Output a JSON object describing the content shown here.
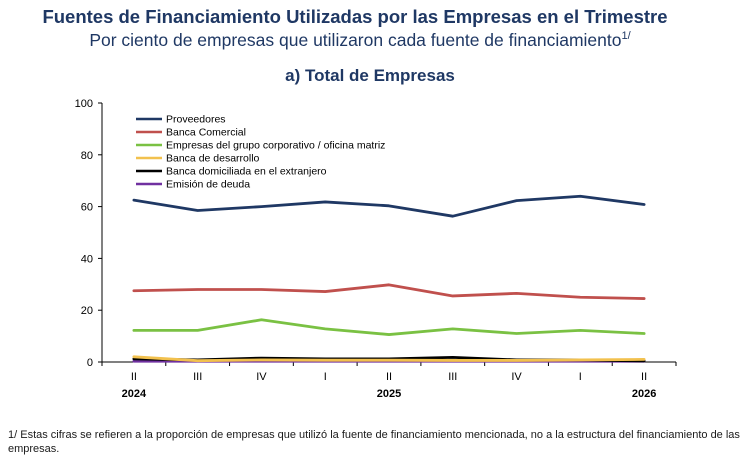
{
  "header": {
    "title": "Fuentes de Financiamiento Utilizadas por las Empresas en el Trimestre",
    "subtitle": "Por ciento de empresas que utilizaron cada fuente de financiamiento",
    "subtitle_note": "1/",
    "panel_title": "a) Total de Empresas"
  },
  "footnote": "1/ Estas cifras se refieren a la proporción de empresas que utilizó la fuente de financiamiento mencionada, no a la estructura del financiamiento de las empresas.",
  "chart_data": {
    "type": "line",
    "categories": [
      "II",
      "III",
      "IV",
      "I",
      "II",
      "III",
      "IV",
      "I",
      "II"
    ],
    "year_labels": [
      {
        "index": 0,
        "label": "2024"
      },
      {
        "index": 4,
        "label": "2025"
      },
      {
        "index": 8,
        "label": "2026"
      }
    ],
    "ylim": [
      0,
      100
    ],
    "yticks": [
      0,
      20,
      40,
      60,
      80,
      100
    ],
    "grid": false,
    "legend_position": "top-left",
    "series": [
      {
        "name": "Proveedores",
        "color": "#1f3864",
        "values": [
          62.5,
          58.5,
          60,
          61.8,
          60.3,
          56.3,
          62.3,
          64,
          60.8
        ]
      },
      {
        "name": "Banca Comercial",
        "color": "#c0504d",
        "values": [
          27.5,
          28,
          28,
          27.2,
          29.8,
          25.5,
          26.5,
          25,
          24.5
        ]
      },
      {
        "name": "Empresas del grupo corporativo / oficina matriz",
        "color": "#7ac143",
        "values": [
          12.2,
          12.2,
          16.3,
          12.8,
          10.6,
          12.8,
          11,
          12.2,
          11
        ]
      },
      {
        "name": "Banca de desarrollo",
        "color": "#f2c14e",
        "values": [
          2,
          0.5,
          0.8,
          0.7,
          0.7,
          0.6,
          0.6,
          0.8,
          1
        ]
      },
      {
        "name": "Banca domiciliada en el extranjero",
        "color": "#000000",
        "values": [
          1.2,
          0.8,
          1.5,
          1.2,
          1.2,
          1.8,
          0.8,
          0.8,
          0.4
        ]
      },
      {
        "name": "Emisión de deuda",
        "color": "#7030a0",
        "values": [
          0.3,
          0.3,
          0.3,
          0.3,
          0.3,
          0.3,
          0.3,
          0.3,
          0.3
        ]
      }
    ]
  }
}
